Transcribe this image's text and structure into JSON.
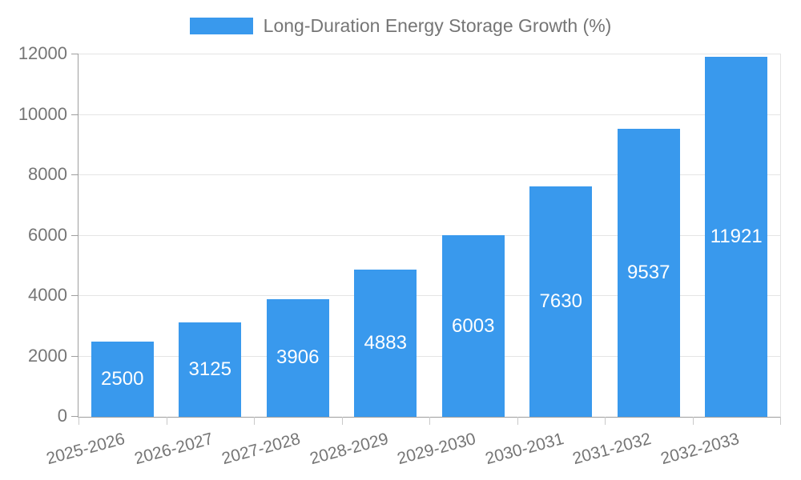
{
  "chart_data": {
    "type": "bar",
    "title": "",
    "categories": [
      "2025-2026",
      "2026-2027",
      "2027-2028",
      "2028-2029",
      "2029-2030",
      "2030-2031",
      "2031-2032",
      "2032-2033"
    ],
    "series": [
      {
        "name": "Long-Duration Energy Storage Growth (%)",
        "values": [
          2500,
          3125,
          3906,
          4883,
          6003,
          7630,
          9537,
          11921
        ],
        "color": "#3999ED"
      }
    ],
    "xlabel": "",
    "ylabel": "",
    "ylim": [
      0,
      12000
    ],
    "yticks": [
      0,
      2000,
      4000,
      6000,
      8000,
      10000,
      12000
    ],
    "grid": true,
    "legend_position": "top-center",
    "value_labels": "inside-center"
  },
  "colors": {
    "background": "#ffffff",
    "axis": "#9e9e9e",
    "grid": "#e4e4e4",
    "xtick": "#c9c9c9",
    "text": "#757575",
    "value_label": "#ffffff"
  }
}
